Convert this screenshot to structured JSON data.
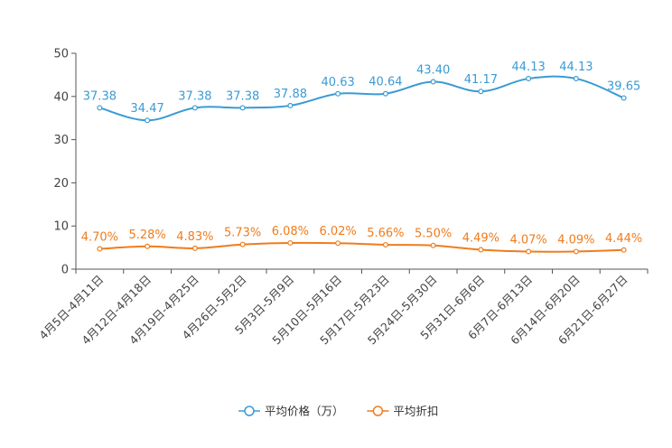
{
  "chart_data": {
    "type": "line",
    "title": "",
    "xlabel": "",
    "ylabel": "",
    "ylim": [
      0,
      50
    ],
    "yticks": [
      0,
      10,
      20,
      30,
      40,
      50
    ],
    "grid": false,
    "legend_position": "bottom-center",
    "categories": [
      "4月5日-4月11日",
      "4月12日-4月18日",
      "4月19日-4月25日",
      "4月26日-5月2日",
      "5月3日-5月9日",
      "5月10日-5月16日",
      "5月17日-5月23日",
      "5月24日-5月30日",
      "5月31日-6月6日",
      "6月7日-6月13日",
      "6月14日-6月20日",
      "6月21日-6月27日"
    ],
    "series": [
      {
        "name": "平均价格（万）",
        "color": "#3a9bd5",
        "values": [
          37.38,
          34.47,
          37.38,
          37.38,
          37.88,
          40.63,
          40.64,
          43.4,
          41.17,
          44.13,
          44.13,
          39.65
        ],
        "labels": [
          "37.38",
          "34.47",
          "37.38",
          "37.38",
          "37.88",
          "40.63",
          "40.64",
          "43.40",
          "41.17",
          "44.13",
          "44.13",
          "39.65"
        ]
      },
      {
        "name": "平均折扣",
        "color": "#f07c1c",
        "values": [
          4.7,
          5.28,
          4.83,
          5.73,
          6.08,
          6.02,
          5.66,
          5.5,
          4.49,
          4.07,
          4.09,
          4.44
        ],
        "labels": [
          "4.70%",
          "5.28%",
          "4.83%",
          "5.73%",
          "6.08%",
          "6.02%",
          "5.66%",
          "5.50%",
          "4.49%",
          "4.07%",
          "4.09%",
          "4.44%"
        ]
      }
    ]
  }
}
